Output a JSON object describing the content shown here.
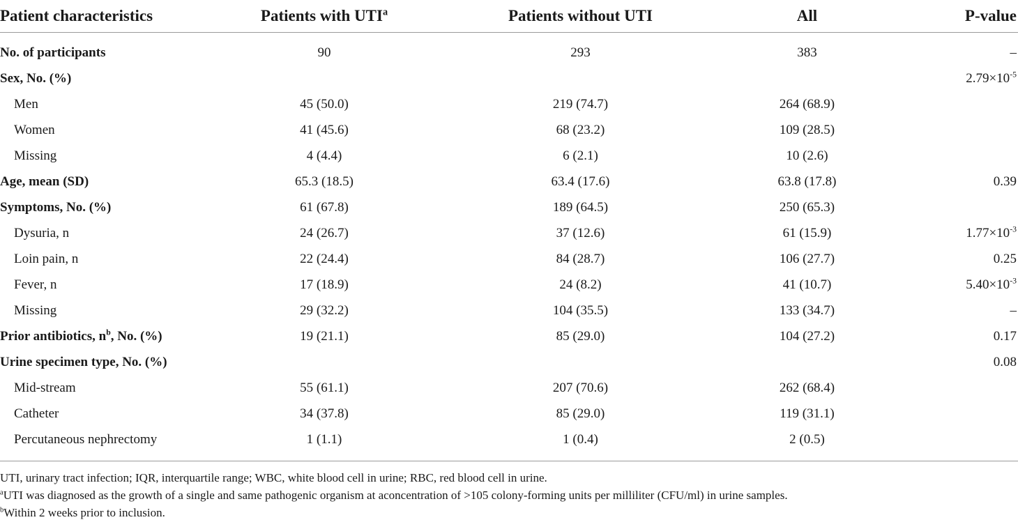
{
  "table": {
    "headers": {
      "characteristics": "Patient characteristics",
      "with_uti": "Patients with UTI",
      "with_uti_sup": "a",
      "without_uti": "Patients without UTI",
      "all": "All",
      "pvalue": "P-value"
    },
    "rows": [
      {
        "label": "No. of participants",
        "bold": true,
        "indent": false,
        "with_uti": "90",
        "without_uti": "293",
        "all": "383",
        "p": "–",
        "p_exp": ""
      },
      {
        "label": "Sex, No. (%)",
        "bold": true,
        "indent": false,
        "with_uti": "",
        "without_uti": "",
        "all": "",
        "p": "2.79×10",
        "p_exp": "-5"
      },
      {
        "label": "Men",
        "bold": false,
        "indent": true,
        "with_uti": "45 (50.0)",
        "without_uti": "219 (74.7)",
        "all": "264 (68.9)",
        "p": "",
        "p_exp": ""
      },
      {
        "label": "Women",
        "bold": false,
        "indent": true,
        "with_uti": "41 (45.6)",
        "without_uti": "68 (23.2)",
        "all": "109 (28.5)",
        "p": "",
        "p_exp": ""
      },
      {
        "label": "Missing",
        "bold": false,
        "indent": true,
        "with_uti": "4 (4.4)",
        "without_uti": "6 (2.1)",
        "all": "10 (2.6)",
        "p": "",
        "p_exp": ""
      },
      {
        "label": "Age, mean (SD)",
        "bold": true,
        "indent": false,
        "with_uti": "65.3 (18.5)",
        "without_uti": "63.4 (17.6)",
        "all": "63.8 (17.8)",
        "p": "0.39",
        "p_exp": ""
      },
      {
        "label": "Symptoms, No. (%)",
        "bold": true,
        "indent": false,
        "with_uti": "61 (67.8)",
        "without_uti": "189 (64.5)",
        "all": "250 (65.3)",
        "p": "",
        "p_exp": ""
      },
      {
        "label": "Dysuria, n",
        "bold": false,
        "indent": true,
        "with_uti": "24 (26.7)",
        "without_uti": "37 (12.6)",
        "all": "61 (15.9)",
        "p": "1.77×10",
        "p_exp": "-3"
      },
      {
        "label": "Loin pain, n",
        "bold": false,
        "indent": true,
        "with_uti": "22 (24.4)",
        "without_uti": "84 (28.7)",
        "all": "106 (27.7)",
        "p": "0.25",
        "p_exp": ""
      },
      {
        "label": "Fever, n",
        "bold": false,
        "indent": true,
        "with_uti": "17 (18.9)",
        "without_uti": "24 (8.2)",
        "all": "41 (10.7)",
        "p": "5.40×10",
        "p_exp": "-3"
      },
      {
        "label": "Missing",
        "bold": false,
        "indent": true,
        "with_uti": "29 (32.2)",
        "without_uti": "104 (35.5)",
        "all": "133 (34.7)",
        "p": "–",
        "p_exp": ""
      },
      {
        "label": "Prior antibiotics, n",
        "label_sup": "b",
        "label_suffix": ", No. (%)",
        "bold": true,
        "indent": false,
        "with_uti": "19 (21.1)",
        "without_uti": "85 (29.0)",
        "all": "104 (27.2)",
        "p": "0.17",
        "p_exp": ""
      },
      {
        "label": "Urine specimen type, No. (%)",
        "bold": true,
        "indent": false,
        "with_uti": "",
        "without_uti": "",
        "all": "",
        "p": "0.08",
        "p_exp": ""
      },
      {
        "label": "Mid-stream",
        "bold": false,
        "indent": true,
        "with_uti": "55 (61.1)",
        "without_uti": "207 (70.6)",
        "all": "262 (68.4)",
        "p": "",
        "p_exp": ""
      },
      {
        "label": "Catheter",
        "bold": false,
        "indent": true,
        "with_uti": "34 (37.8)",
        "without_uti": "85 (29.0)",
        "all": "119 (31.1)",
        "p": "",
        "p_exp": ""
      },
      {
        "label": "Percutaneous nephrectomy",
        "bold": false,
        "indent": true,
        "with_uti": "1 (1.1)",
        "without_uti": "1 (0.4)",
        "all": "2 (0.5)",
        "p": "",
        "p_exp": ""
      }
    ]
  },
  "footnotes": {
    "abbreviations": "UTI, urinary tract infection; IQR, interquartile range; WBC, white blood cell in urine; RBC, red blood cell in urine.",
    "note_a_mark": "a",
    "note_a": "UTI was diagnosed as the growth of a single and same pathogenic organism at aconcentration of >105 colony-forming units per milliliter (CFU/ml) in urine samples.",
    "note_b_mark": "b",
    "note_b": "Within 2 weeks prior to inclusion."
  }
}
